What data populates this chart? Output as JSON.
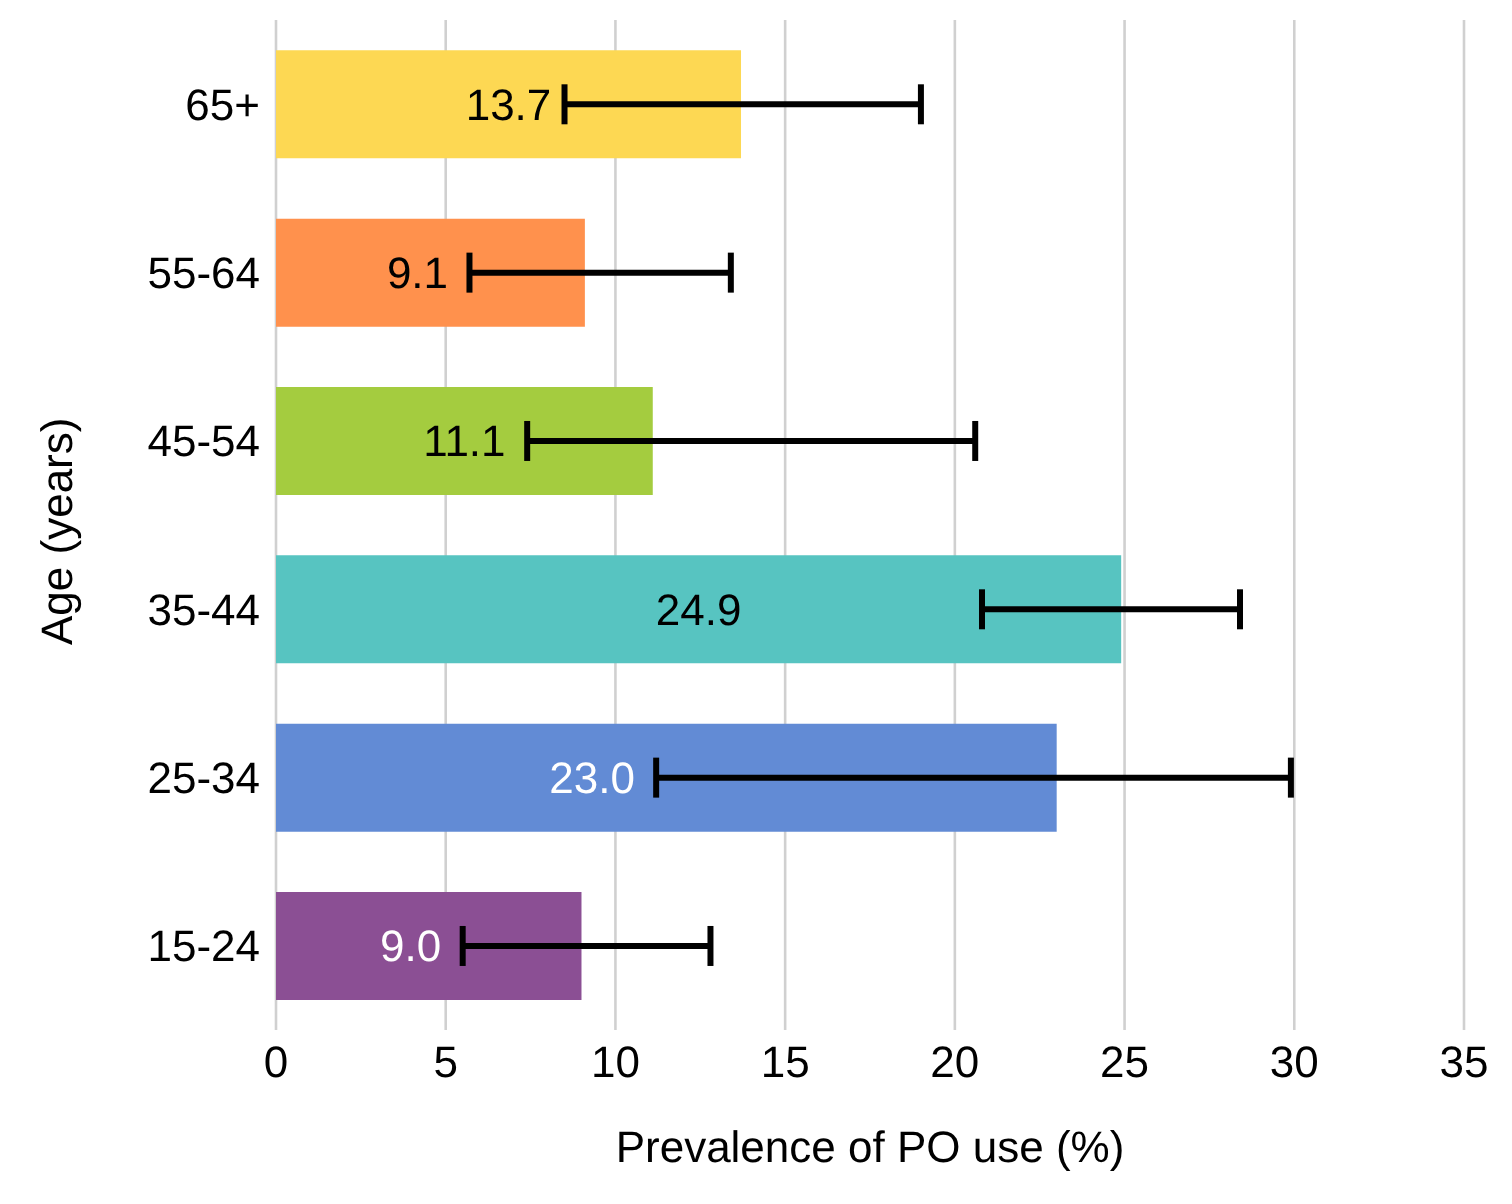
{
  "chart_data": {
    "type": "bar",
    "orientation": "horizontal",
    "xlabel": "Prevalence of PO use (%)",
    "ylabel": "Age (years)",
    "categories": [
      "65+",
      "55-64",
      "45-54",
      "35-44",
      "25-34",
      "15-24"
    ],
    "values": [
      13.7,
      9.1,
      11.1,
      24.9,
      23.0,
      9.0
    ],
    "colors": [
      "#fdd853",
      "#ff914d",
      "#a4cc3f",
      "#57c4c1",
      "#628bd5",
      "#8b4f94"
    ],
    "errors": [
      [
        8.5,
        19.0
      ],
      [
        5.7,
        13.4
      ],
      [
        7.4,
        20.6
      ],
      [
        20.8,
        28.4
      ],
      [
        11.2,
        29.9
      ],
      [
        5.5,
        12.8
      ]
    ],
    "value_labels": [
      "13.7",
      "9.1",
      "11.1",
      "24.9",
      "23.0",
      "9.0"
    ],
    "xlim": [
      0,
      35
    ],
    "xticks": [
      0,
      5,
      10,
      15,
      20,
      25,
      30,
      35
    ],
    "grid": "x",
    "legend": false
  }
}
